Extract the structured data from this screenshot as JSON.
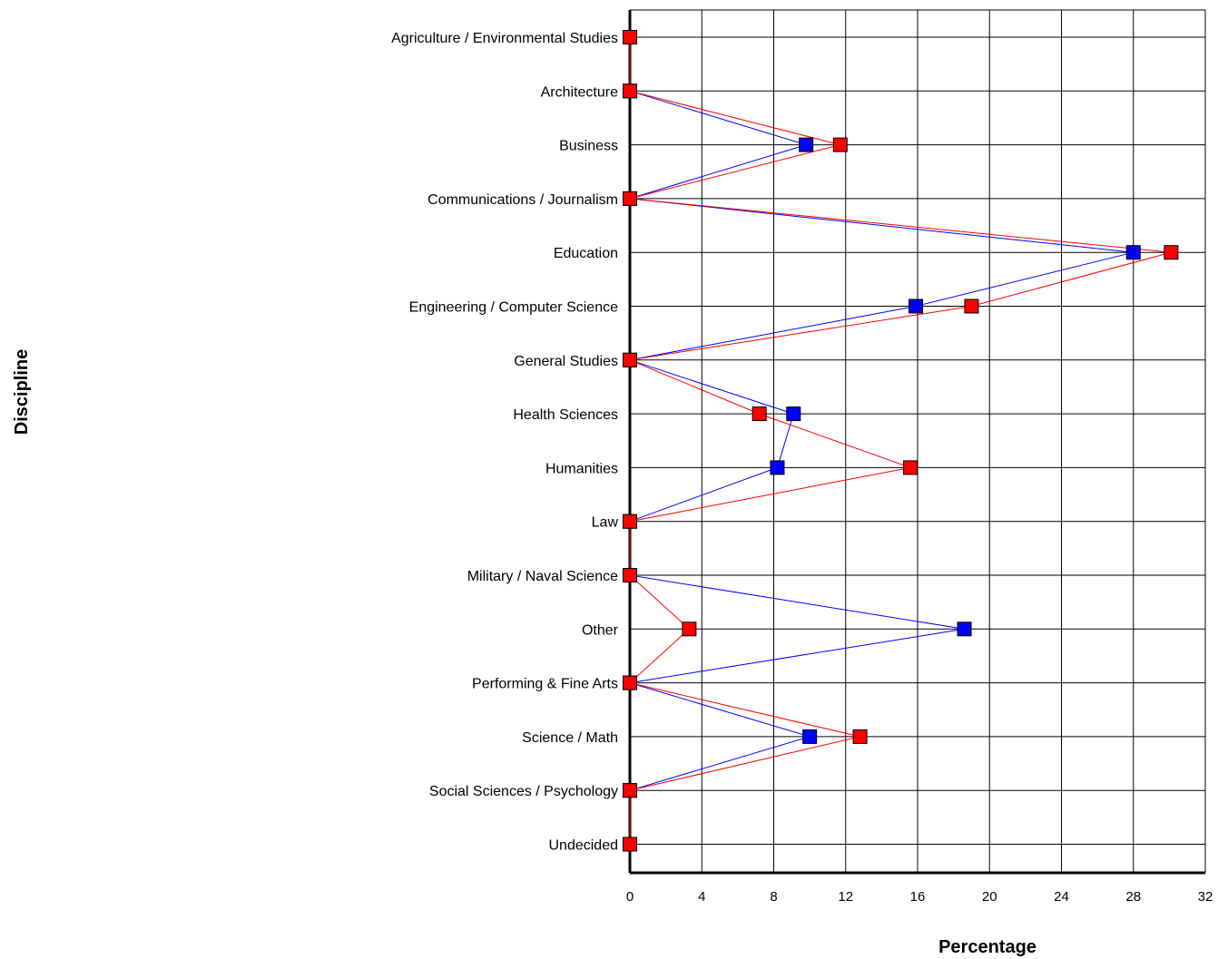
{
  "chart_data": {
    "type": "line",
    "orientation": "horizontal",
    "title": "",
    "xlabel": "Percentage",
    "ylabel": "Discipline",
    "xlim": [
      0,
      32
    ],
    "xticks": [
      0,
      4,
      8,
      12,
      16,
      20,
      24,
      28,
      32
    ],
    "grid": true,
    "legend": "none",
    "categories": [
      "Agriculture / Environmental Studies",
      "Architecture",
      "Business",
      "Communications / Journalism",
      "Education",
      "Engineering / Computer Science",
      "General Studies",
      "Health Sciences",
      "Humanities",
      "Law",
      "Military / Naval Science",
      "Other",
      "Performing & Fine Arts",
      "Science / Math",
      "Social Sciences / Psychology",
      "Undecided"
    ],
    "series": [
      {
        "color": "#0000ff",
        "values": [
          0,
          0,
          9.8,
          0,
          28.0,
          15.9,
          0,
          9.1,
          8.2,
          0,
          0,
          18.6,
          0,
          10.0,
          0,
          0
        ]
      },
      {
        "color": "#ff0000",
        "values": [
          0,
          0,
          11.7,
          0,
          30.1,
          19.0,
          0,
          7.2,
          15.6,
          0,
          0,
          3.3,
          0,
          12.8,
          0,
          0
        ]
      }
    ]
  }
}
